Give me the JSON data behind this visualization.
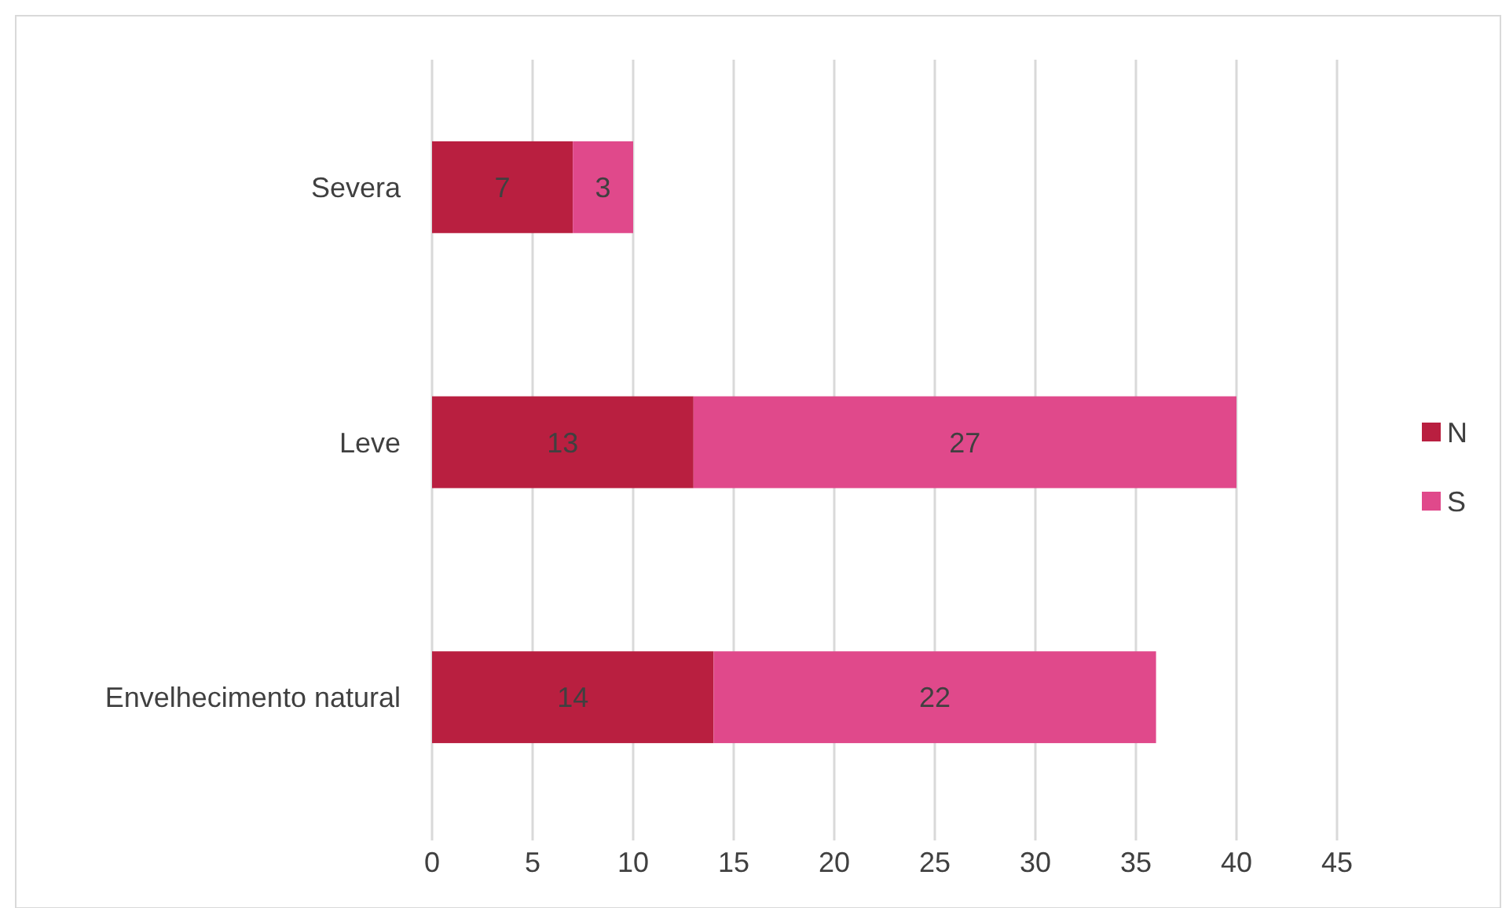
{
  "chart_data": {
    "type": "bar",
    "orientation": "horizontal",
    "stacked": true,
    "categories": [
      "Severa",
      "Leve",
      "Envelhecimento natural"
    ],
    "series": [
      {
        "name": "N",
        "color": "#b91f40",
        "values": [
          7,
          13,
          14
        ]
      },
      {
        "name": "S",
        "color": "#e0498b",
        "values": [
          3,
          27,
          22
        ]
      }
    ],
    "xlim": [
      0,
      45
    ],
    "xticks": [
      0,
      5,
      10,
      15,
      20,
      25,
      30,
      35,
      40,
      45
    ],
    "grid": "x",
    "legend": "right",
    "data_labels": true
  }
}
